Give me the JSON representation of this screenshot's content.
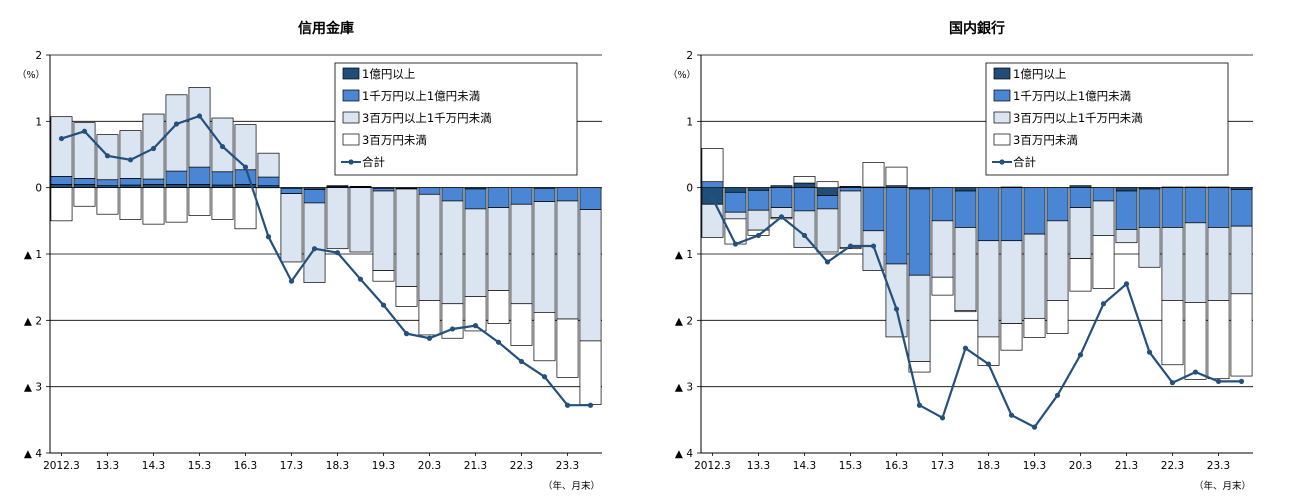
{
  "colors": {
    "over100m": "#1f4e79",
    "10m_100m": "#4a86d4",
    "3m_10m": "#dbe5f1",
    "under3m": "#ffffff",
    "total": "#24507e"
  },
  "legend_labels": [
    "1億円以上",
    "1千万円以上1億円未満",
    "3百万円以上1千万円未満",
    "3百万円未満",
    "合計"
  ],
  "chart_data": [
    {
      "type": "bar",
      "stacked": true,
      "title": "信用金庫",
      "y_unit": "（%）",
      "x_unit": "（年、月末）",
      "ylim": [
        -4,
        2
      ],
      "yticks": [
        2,
        1,
        0,
        -1,
        -2,
        -3,
        -4
      ],
      "ytick_labels": [
        "2",
        "1",
        "0",
        "▲ 1",
        "▲ 2",
        "▲ 3",
        "▲ 4"
      ],
      "xtick_labels": [
        "2012.3",
        "13.3",
        "14.3",
        "15.3",
        "16.3",
        "17.3",
        "18.3",
        "19.3",
        "20.3",
        "21.3",
        "22.3",
        "23.3"
      ],
      "legend_placement": "top-right",
      "grid": true,
      "series": [
        {
          "name": "1億円以上",
          "values": [
            0.05,
            0.05,
            0.03,
            0.04,
            0.05,
            0.05,
            0.05,
            0.04,
            0.05,
            0.03,
            -0.01,
            -0.03,
            0.02,
            0.01,
            -0.01,
            -0.01,
            0,
            0,
            -0.02,
            0,
            0,
            -0.01,
            0,
            0
          ]
        },
        {
          "name": "1千万円以上1億円未満",
          "values": [
            0.12,
            0.09,
            0.09,
            0.1,
            0.08,
            0.2,
            0.26,
            0.2,
            0.22,
            0.13,
            -0.08,
            -0.2,
            0.01,
            0.01,
            -0.04,
            -0.01,
            -0.1,
            -0.2,
            -0.3,
            -0.3,
            -0.25,
            -0.2,
            -0.2,
            -0.33
          ]
        },
        {
          "name": "3百万円以上1千万円未満",
          "values": [
            0.9,
            0.84,
            0.68,
            0.72,
            0.98,
            1.15,
            1.2,
            0.81,
            0.68,
            0.36,
            -1.03,
            -1.2,
            -0.92,
            -0.97,
            -1.2,
            -1.47,
            -1.6,
            -1.55,
            -1.32,
            -1.25,
            -1.5,
            -1.67,
            -1.78,
            -1.98
          ]
        },
        {
          "name": "3百万円未満",
          "values": [
            -0.5,
            -0.28,
            -0.4,
            -0.48,
            -0.55,
            -0.52,
            -0.42,
            -0.48,
            -0.62,
            0,
            0,
            0,
            0,
            0,
            -0.16,
            -0.3,
            -0.52,
            -0.52,
            -0.52,
            -0.5,
            -0.63,
            -0.73,
            -0.88,
            -0.96
          ]
        },
        {
          "name": "合計",
          "type": "line",
          "values": [
            0.74,
            0.85,
            0.48,
            0.42,
            0.59,
            0.96,
            1.08,
            0.62,
            0.31,
            -0.74,
            -1.41,
            -0.92,
            -0.98,
            -1.38,
            -1.77,
            -2.2,
            -2.27,
            -2.13,
            -2.08,
            -2.33,
            -2.62,
            -2.85,
            -3.28,
            -3.28
          ]
        }
      ]
    },
    {
      "type": "bar",
      "stacked": true,
      "title": "国内銀行",
      "y_unit": "（%）",
      "x_unit": "（年、月末）",
      "ylim": [
        -4,
        2
      ],
      "yticks": [
        2,
        1,
        0,
        -1,
        -2,
        -3,
        -4
      ],
      "ytick_labels": [
        "2",
        "1",
        "0",
        "▲ 1",
        "▲ 2",
        "▲ 3",
        "▲ 4"
      ],
      "xtick_labels": [
        "2012.3",
        "13.3",
        "14.3",
        "15.3",
        "16.3",
        "17.3",
        "18.3",
        "19.3",
        "20.3",
        "21.3",
        "22.3",
        "23.3"
      ],
      "legend_placement": "top-right",
      "grid": true,
      "series": [
        {
          "name": "1億円以上",
          "values": [
            -0.25,
            -0.07,
            -0.04,
            0.03,
            0.07,
            -0.12,
            0.02,
            0.01,
            0.03,
            -0.02,
            0,
            -0.05,
            0,
            0.01,
            0,
            0,
            0.03,
            0,
            -0.05,
            -0.02,
            0.01,
            0.01,
            0.01,
            -0.03
          ]
        },
        {
          "name": "1千万円以上1億円未満",
          "values": [
            0.09,
            -0.3,
            -0.3,
            -0.3,
            -0.35,
            -0.2,
            -0.05,
            -0.65,
            -1.15,
            -1.3,
            -0.5,
            -0.55,
            -0.8,
            -0.8,
            -0.7,
            -0.5,
            -0.3,
            -0.2,
            -0.58,
            -0.58,
            -0.6,
            -0.53,
            -0.6,
            -0.55
          ]
        },
        {
          "name": "3百万円以上1千万円未満",
          "values": [
            -0.5,
            -0.1,
            -0.3,
            -0.15,
            -0.55,
            -0.65,
            -0.85,
            -0.6,
            -1.1,
            -1.3,
            -0.85,
            -1.25,
            -1.45,
            -1.25,
            -1.27,
            -1.2,
            -0.77,
            -0.52,
            -0.2,
            -0.6,
            -1.1,
            -1.2,
            -1.1,
            -1.02
          ]
        },
        {
          "name": "3百万円未満",
          "values": [
            0.5,
            -0.38,
            -0.08,
            -0.02,
            0.1,
            0.09,
            -0.02,
            0.37,
            0.28,
            -0.16,
            -0.27,
            -0.02,
            -0.43,
            -0.4,
            -0.29,
            -0.5,
            -0.49,
            -0.8,
            0,
            0,
            -0.97,
            -1.16,
            -1.18,
            -1.24
          ]
        },
        {
          "name": "合計",
          "type": "line",
          "values": [
            -0.16,
            -0.85,
            -0.72,
            -0.44,
            -0.72,
            -1.12,
            -0.88,
            -0.88,
            -1.83,
            -3.28,
            -3.47,
            -2.42,
            -2.66,
            -3.43,
            -3.61,
            -3.13,
            -2.52,
            -1.75,
            -1.45,
            -2.48,
            -2.94,
            -2.78,
            -2.92,
            -2.92
          ]
        }
      ]
    }
  ]
}
